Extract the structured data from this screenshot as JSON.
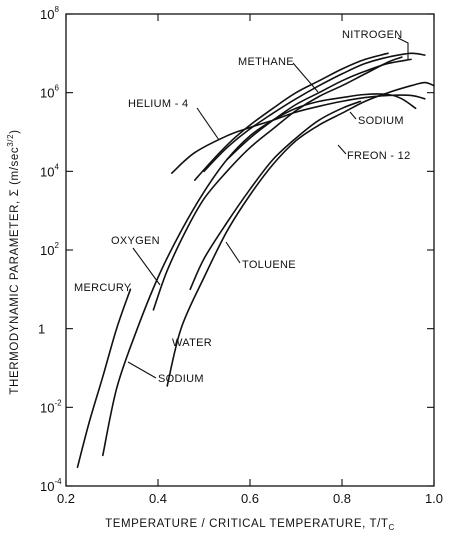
{
  "chart_data": {
    "type": "line",
    "title": "",
    "xlabel": "TEMPERATURE / CRITICAL  TEMPERATURE, T/T",
    "xlabel_sub": "C",
    "ylabel": "THERMODYNAMIC  PARAMETER,  Σ  (m/sec",
    "ylabel_sup": "3/2",
    "ylabel_end": ")",
    "xlim": [
      0.2,
      1.0
    ],
    "ylim": [
      0.0001,
      100000000
    ],
    "yscale": "log",
    "grid": false,
    "x_ticks": [
      {
        "value": 0.2,
        "label": "0.2"
      },
      {
        "value": 0.4,
        "label": "0.4"
      },
      {
        "value": 0.6,
        "label": "0.6"
      },
      {
        "value": 0.8,
        "label": "0.8"
      },
      {
        "value": 1.0,
        "label": "1.0"
      }
    ],
    "y_ticks": [
      {
        "value": 0.0001,
        "base": "10",
        "exp": "-4"
      },
      {
        "value": 0.01,
        "base": "10",
        "exp": "-2"
      },
      {
        "value": 1,
        "base": "1",
        "exp": ""
      },
      {
        "value": 100,
        "base": "10",
        "exp": "2"
      },
      {
        "value": 10000,
        "base": "10",
        "exp": "4"
      },
      {
        "value": 1000000,
        "base": "10",
        "exp": "6"
      },
      {
        "value": 100000000,
        "base": "10",
        "exp": "8"
      }
    ],
    "series": [
      {
        "name": "MERCURY",
        "points": [
          [
            0.225,
            0.0003
          ],
          [
            0.25,
            0.004
          ],
          [
            0.28,
            0.06
          ],
          [
            0.31,
            1
          ],
          [
            0.34,
            10
          ]
        ]
      },
      {
        "name": "SODIUM",
        "points": [
          [
            0.28,
            0.0006
          ],
          [
            0.31,
            0.03
          ],
          [
            0.35,
            0.7
          ],
          [
            0.4,
            20
          ],
          [
            0.45,
            300
          ],
          [
            0.5,
            3000
          ],
          [
            0.55,
            20000
          ],
          [
            0.6,
            80000
          ],
          [
            0.65,
            200000
          ],
          [
            0.7,
            400000
          ],
          [
            0.75,
            600000
          ],
          [
            0.8,
            750000
          ],
          [
            0.85,
            900000
          ],
          [
            0.9,
            900000
          ],
          [
            0.93,
            700000
          ],
          [
            0.96,
            400000
          ]
        ]
      },
      {
        "name": "OXYGEN",
        "points": [
          [
            0.39,
            3
          ],
          [
            0.42,
            30
          ],
          [
            0.46,
            300
          ],
          [
            0.5,
            2000
          ],
          [
            0.55,
            10000
          ],
          [
            0.6,
            40000
          ],
          [
            0.65,
            120000
          ],
          [
            0.7,
            350000
          ],
          [
            0.75,
            800000
          ],
          [
            0.8,
            1500000
          ],
          [
            0.85,
            3000000
          ],
          [
            0.9,
            6000000
          ],
          [
            0.93,
            8000000
          ]
        ]
      },
      {
        "name": "WATER",
        "points": [
          [
            0.42,
            0.035
          ],
          [
            0.45,
            1
          ],
          [
            0.5,
            20
          ],
          [
            0.55,
            300
          ],
          [
            0.6,
            2500
          ],
          [
            0.65,
            15000
          ],
          [
            0.7,
            60000
          ],
          [
            0.75,
            150000
          ],
          [
            0.8,
            300000
          ],
          [
            0.85,
            600000
          ],
          [
            0.9,
            1000000
          ],
          [
            0.95,
            1500000
          ],
          [
            0.98,
            1800000
          ],
          [
            1.0,
            1500000
          ]
        ]
      },
      {
        "name": "TOLUENE",
        "points": [
          [
            0.47,
            10
          ],
          [
            0.5,
            60
          ],
          [
            0.55,
            500
          ],
          [
            0.6,
            3500
          ],
          [
            0.65,
            20000
          ],
          [
            0.7,
            70000
          ],
          [
            0.75,
            200000
          ],
          [
            0.8,
            400000
          ],
          [
            0.84,
            600000
          ]
        ]
      },
      {
        "name": "HELIUM-4",
        "points": [
          [
            0.43,
            9000
          ],
          [
            0.48,
            30000
          ],
          [
            0.55,
            80000
          ],
          [
            0.6,
            130000
          ],
          [
            0.65,
            200000
          ],
          [
            0.7,
            320000
          ],
          [
            0.75,
            450000
          ],
          [
            0.8,
            600000
          ],
          [
            0.85,
            750000
          ],
          [
            0.9,
            850000
          ],
          [
            0.95,
            850000
          ],
          [
            0.98,
            700000
          ]
        ]
      },
      {
        "name": "METHANE",
        "points": [
          [
            0.48,
            6000
          ],
          [
            0.52,
            20000
          ],
          [
            0.56,
            60000
          ],
          [
            0.6,
            150000
          ],
          [
            0.65,
            400000
          ],
          [
            0.7,
            1000000
          ],
          [
            0.75,
            2000000
          ],
          [
            0.8,
            4000000
          ],
          [
            0.85,
            7000000
          ],
          [
            0.9,
            10000000
          ]
        ]
      },
      {
        "name": "NITROGEN",
        "points": [
          [
            0.5,
            10000
          ],
          [
            0.55,
            40000
          ],
          [
            0.6,
            120000
          ],
          [
            0.65,
            300000
          ],
          [
            0.7,
            700000
          ],
          [
            0.75,
            1500000
          ],
          [
            0.8,
            3000000
          ],
          [
            0.85,
            5500000
          ],
          [
            0.9,
            8000000
          ],
          [
            0.95,
            10000000
          ],
          [
            0.98,
            9000000
          ]
        ]
      },
      {
        "name": "FREON-12",
        "points": [
          [
            0.55,
            20000
          ],
          [
            0.6,
            70000
          ],
          [
            0.65,
            200000
          ],
          [
            0.7,
            500000
          ],
          [
            0.75,
            1000000
          ],
          [
            0.8,
            2000000
          ],
          [
            0.85,
            3500000
          ],
          [
            0.9,
            5500000
          ],
          [
            0.95,
            7000000
          ]
        ]
      }
    ],
    "labels": [
      {
        "series": "MERCURY",
        "text": "MERCURY"
      },
      {
        "series": "SODIUM",
        "text": "SODIUM"
      },
      {
        "series": "SODIUM",
        "text": "SODIUM"
      },
      {
        "series": "OXYGEN",
        "text": "OXYGEN"
      },
      {
        "series": "WATER",
        "text": "WATER"
      },
      {
        "series": "TOLUENE",
        "text": "TOLUENE"
      },
      {
        "series": "HELIUM-4",
        "text": "HELIUM - 4"
      },
      {
        "series": "METHANE",
        "text": "METHANE"
      },
      {
        "series": "NITROGEN",
        "text": "NITROGEN"
      },
      {
        "series": "FREON-12",
        "text": "FREON - 12"
      }
    ]
  }
}
